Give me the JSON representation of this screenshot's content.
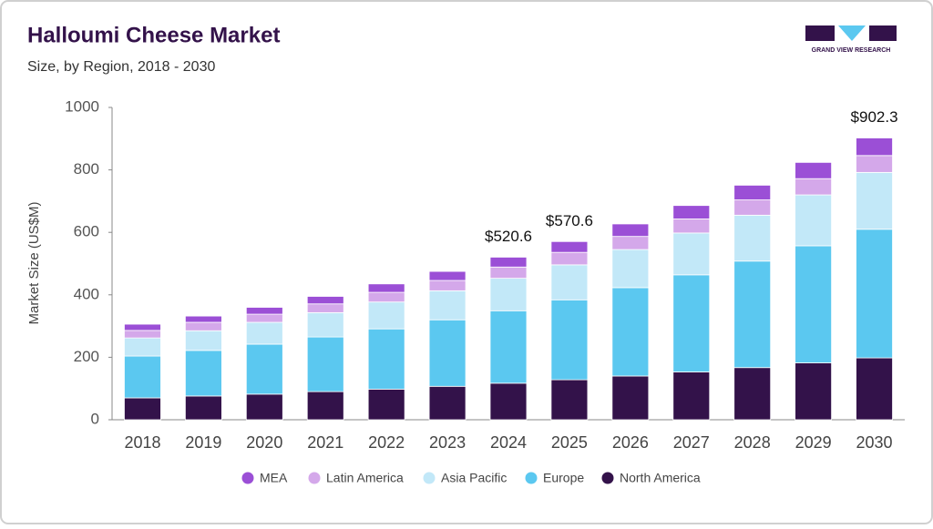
{
  "logo": "GRAND VIEW RESEARCH",
  "chart_data": {
    "type": "stacked-bar",
    "title": "Halloumi Cheese Market",
    "subtitle": "Size, by Region, 2018 - 2030",
    "y_label": "Market Size (US$M)",
    "categories": [
      "2018",
      "2019",
      "2020",
      "2021",
      "2022",
      "2023",
      "2024",
      "2025",
      "2026",
      "2027",
      "2028",
      "2029",
      "2030"
    ],
    "series": [
      {
        "name": "North America",
        "color": "#33124a",
        "values": [
          70,
          76,
          82,
          90,
          98,
          107,
          117,
          128,
          140,
          153,
          167,
          182,
          198
        ]
      },
      {
        "name": "Europe",
        "color": "#5bc8f0",
        "values": [
          134,
          146,
          160,
          175,
          193,
          213,
          232,
          256,
          283,
          311,
          341,
          375,
          412
        ]
      },
      {
        "name": "Asia Pacific",
        "color": "#c2e8f8",
        "values": [
          58,
          63,
          70,
          78,
          86,
          93,
          104,
          112,
          122,
          134,
          147,
          163,
          182
        ]
      },
      {
        "name": "Latin America",
        "color": "#d4a8ea",
        "values": [
          24,
          27,
          26,
          28,
          31,
          33,
          36,
          40,
          42,
          45,
          49,
          52,
          54
        ]
      },
      {
        "name": "MEA",
        "color": "#9b4fd6",
        "values": [
          20,
          20,
          22,
          24,
          27,
          29,
          31.6,
          34.6,
          40,
          43,
          47,
          52,
          56.3
        ]
      }
    ],
    "annotations": [
      {
        "x": "2024",
        "value": 520.6,
        "label": "$520.6"
      },
      {
        "x": "2025",
        "value": 570.6,
        "label": "$570.6"
      },
      {
        "x": "2030",
        "value": 902.3,
        "label": "$902.3"
      }
    ],
    "ylim": [
      0,
      1000
    ],
    "yticks": [
      0,
      200,
      400,
      600,
      800,
      1000
    ],
    "grid": false
  }
}
